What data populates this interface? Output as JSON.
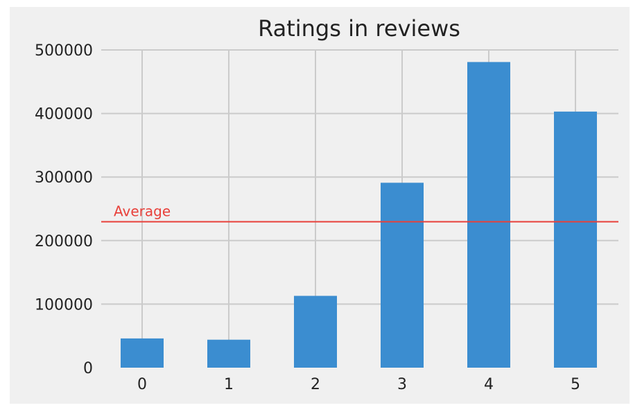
{
  "chart_data": {
    "type": "bar",
    "title": "Ratings in reviews",
    "xlabel": "",
    "ylabel": "",
    "categories": [
      "0",
      "1",
      "2",
      "3",
      "4",
      "5"
    ],
    "values": [
      46000,
      44000,
      113000,
      291000,
      481000,
      403000
    ],
    "ylim": [
      0,
      500000
    ],
    "yticks": [
      "0",
      "100000",
      "200000",
      "300000",
      "400000",
      "500000"
    ],
    "grid": true,
    "bar_color": "#3b8dd0",
    "reference_line": {
      "label": "Average",
      "value": 229667,
      "color": "#e8403a"
    }
  }
}
